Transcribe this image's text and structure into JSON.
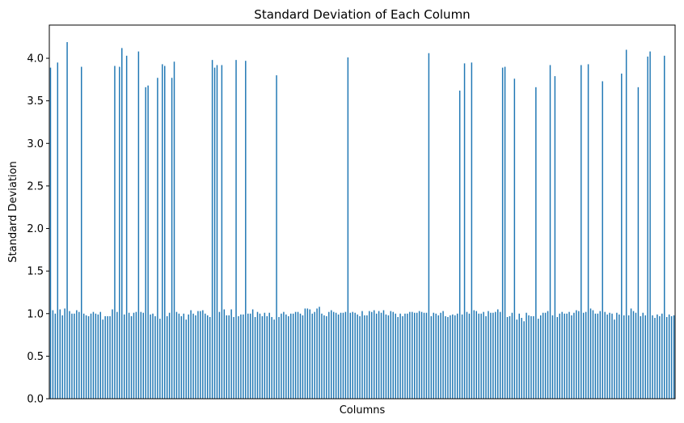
{
  "chart_data": {
    "type": "bar",
    "title": "Standard Deviation of Each Column",
    "xlabel": "Columns",
    "ylabel": "Standard Deviation",
    "ylim": [
      0,
      4.39
    ],
    "yticks": [
      0.0,
      0.5,
      1.0,
      1.5,
      2.0,
      2.5,
      3.0,
      3.5,
      4.0
    ],
    "ytick_labels": [
      "0.0",
      "0.5",
      "1.0",
      "1.5",
      "2.0",
      "2.5",
      "3.0",
      "3.5",
      "4.0"
    ],
    "grid": false,
    "bar_color": "#1f77b4",
    "values": [
      3.89,
      1.04,
      1.0,
      3.95,
      1.05,
      0.98,
      1.06,
      4.19,
      1.03,
      1.0,
      1.0,
      1.04,
      1.02,
      3.9,
      1.0,
      0.98,
      0.97,
      1.0,
      1.02,
      1.0,
      0.99,
      1.02,
      0.93,
      0.97,
      0.97,
      0.97,
      1.05,
      3.91,
      1.02,
      3.9,
      4.12,
      0.99,
      4.03,
      1.01,
      0.97,
      1.01,
      1.02,
      4.08,
      1.02,
      1.01,
      3.66,
      3.68,
      0.99,
      1.0,
      0.97,
      3.77,
      0.94,
      3.93,
      3.91,
      0.97,
      1.01,
      3.77,
      3.96,
      1.02,
      1.0,
      0.97,
      1.0,
      0.93,
      0.99,
      1.04,
      1.0,
      0.98,
      1.03,
      1.03,
      1.04,
      1.0,
      0.98,
      0.96,
      3.98,
      3.89,
      3.92,
      1.02,
      3.92,
      1.05,
      0.98,
      0.98,
      1.05,
      0.96,
      3.98,
      0.97,
      0.99,
      0.99,
      3.97,
      1.0,
      1.0,
      1.05,
      0.96,
      1.02,
      1.0,
      0.97,
      1.01,
      0.97,
      1.01,
      0.96,
      0.93,
      3.8,
      0.96,
      1.0,
      1.02,
      0.99,
      0.97,
      1.0,
      1.0,
      1.02,
      1.02,
      1.0,
      0.98,
      1.06,
      1.06,
      1.05,
      1.0,
      1.02,
      1.06,
      1.08,
      1.0,
      0.98,
      0.97,
      1.02,
      1.04,
      1.02,
      1.01,
      0.99,
      1.01,
      1.01,
      1.02,
      4.01,
      1.01,
      1.02,
      1.01,
      0.99,
      0.97,
      1.03,
      0.98,
      0.98,
      1.03,
      1.02,
      1.04,
      1.0,
      1.03,
      1.01,
      1.04,
      0.99,
      0.98,
      1.03,
      1.02,
      1.0,
      0.96,
      1.0,
      0.97,
      1.0,
      1.0,
      1.02,
      1.02,
      1.01,
      1.01,
      1.03,
      1.02,
      1.01,
      1.01,
      4.06,
      0.97,
      1.01,
      1.0,
      0.98,
      1.01,
      1.03,
      0.97,
      0.96,
      0.98,
      0.99,
      0.98,
      1.0,
      3.62,
      0.99,
      3.94,
      1.02,
      1.0,
      3.95,
      1.04,
      1.03,
      1.0,
      1.0,
      1.02,
      0.97,
      1.03,
      1.01,
      1.01,
      1.02,
      1.05,
      1.02,
      3.89,
      3.9,
      0.96,
      0.97,
      1.01,
      3.76,
      0.93,
      1.0,
      0.95,
      0.91,
      1.01,
      0.98,
      0.97,
      0.97,
      3.66,
      0.94,
      0.98,
      1.01,
      1.01,
      1.03,
      3.92,
      0.98,
      3.79,
      0.96,
      1.0,
      1.02,
      1.0,
      1.0,
      1.02,
      0.98,
      1.01,
      1.04,
      1.03,
      3.92,
      1.01,
      1.02,
      3.93,
      1.06,
      1.04,
      1.0,
      1.0,
      1.03,
      3.73,
      1.02,
      0.99,
      1.01,
      1.0,
      0.93,
      1.01,
      0.99,
      3.82,
      0.98,
      4.1,
      0.98,
      1.06,
      1.03,
      1.01,
      3.66,
      0.97,
      1.01,
      0.98,
      4.02,
      4.08,
      0.98,
      0.95,
      0.99,
      0.97,
      1.0,
      4.03,
      0.96,
      0.99,
      0.97,
      0.98
    ]
  }
}
